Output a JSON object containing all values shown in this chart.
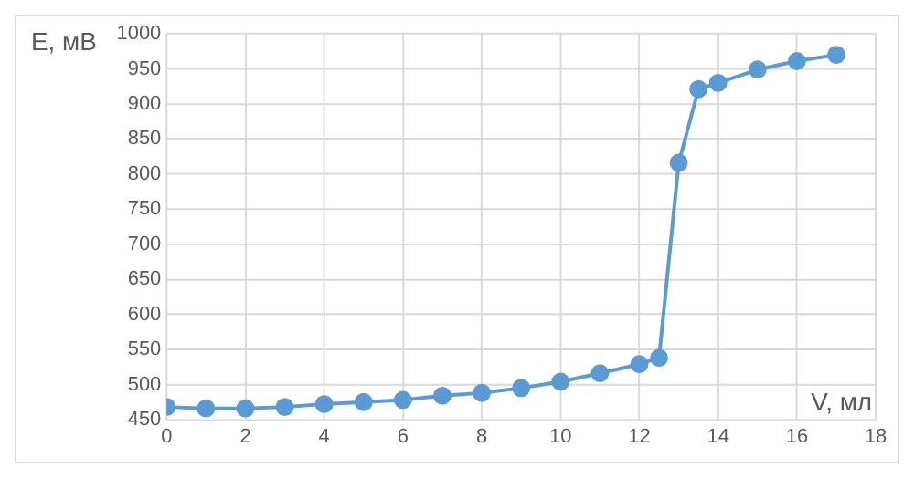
{
  "chart_data": {
    "type": "line",
    "xlabel": "V, мл",
    "ylabel": "E, мВ",
    "x": [
      0,
      1,
      2,
      3,
      4,
      5,
      6,
      7,
      8,
      9,
      10,
      11,
      12,
      12.5,
      13,
      13.5,
      14,
      15,
      16,
      17
    ],
    "series": [
      {
        "color": "#5b9bd5",
        "values": [
          468,
          466,
          466,
          468,
          472,
          475,
          478,
          484,
          488,
          495,
          504,
          516,
          529,
          538,
          816,
          921,
          930,
          949,
          961,
          970
        ]
      }
    ],
    "xlim": [
      0,
      18
    ],
    "xticks": [
      0,
      2,
      4,
      6,
      8,
      10,
      12,
      14,
      16,
      18
    ],
    "ylim": [
      450,
      1000
    ],
    "yticks": [
      450,
      500,
      550,
      600,
      650,
      700,
      750,
      800,
      850,
      900,
      950,
      1000
    ],
    "grid": true,
    "legend": false,
    "marker": "circle",
    "line_style": "solid"
  }
}
